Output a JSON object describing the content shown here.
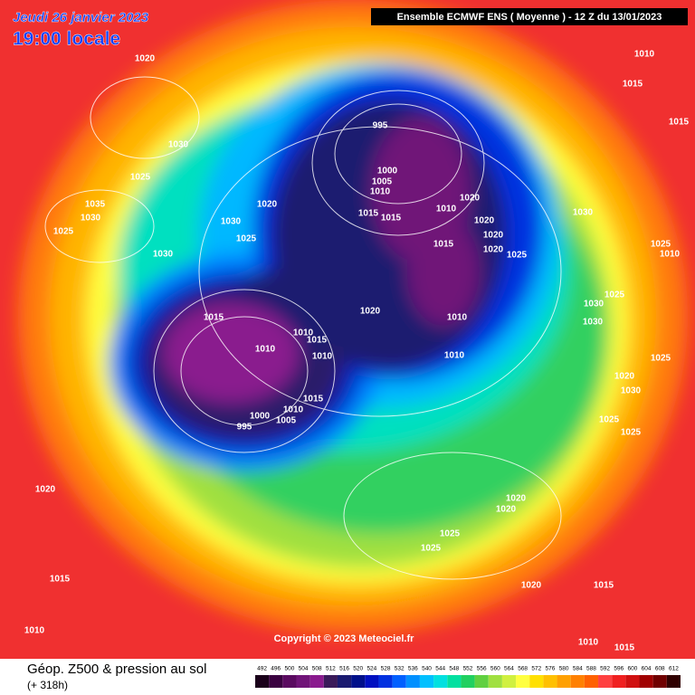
{
  "header": {
    "date": "Jeudi 26 janvier 2023",
    "time": "19:00 locale",
    "run": "Ensemble ECMWF ENS  ( Moyenne )  - 12 Z du 13/01/2023"
  },
  "copyright": "Copyright © 2023 Meteociel.fr",
  "footer": {
    "title": "Géop. Z500 & pression au sol",
    "lead": "(+ 318h)"
  },
  "isobar_labels": [
    1020,
    1030,
    1025,
    1030,
    1025,
    1035,
    1030,
    1030,
    1020,
    1025,
    995,
    1000,
    1005,
    1010,
    1015,
    1015,
    1010,
    1020,
    1020,
    1015,
    1020,
    1025,
    1020,
    1030,
    1015,
    1020,
    1010,
    1010,
    1010,
    1010,
    1015,
    1010,
    1015,
    1010,
    1005,
    1000,
    995,
    1010,
    1015,
    1015,
    1025,
    1010,
    1025,
    1030,
    1030,
    1025,
    1020,
    1030,
    1025,
    1025,
    1020,
    1015,
    1010,
    1020,
    1020,
    1025,
    1025,
    1020,
    1015,
    1010,
    1015
  ],
  "colorbar": {
    "values": [
      492,
      496,
      500,
      504,
      508,
      512,
      516,
      520,
      524,
      528,
      532,
      536,
      540,
      544,
      548,
      552,
      556,
      560,
      564,
      568,
      572,
      576,
      580,
      584,
      588,
      592,
      596,
      600,
      604,
      608,
      612
    ],
    "colors": [
      "#1a001a",
      "#3a0040",
      "#5a0a60",
      "#701478",
      "#8a1a8e",
      "#3a1a5a",
      "#1a1a70",
      "#00108a",
      "#0010c0",
      "#0030e0",
      "#0060ff",
      "#0090ff",
      "#00c0ff",
      "#00e0e0",
      "#00e0a0",
      "#20d060",
      "#60d040",
      "#a0e040",
      "#d0f040",
      "#ffff40",
      "#ffe000",
      "#ffc000",
      "#ffa000",
      "#ff8000",
      "#ff6000",
      "#ff4040",
      "#f02020",
      "#d01010",
      "#a00000",
      "#700000",
      "#300000"
    ]
  }
}
